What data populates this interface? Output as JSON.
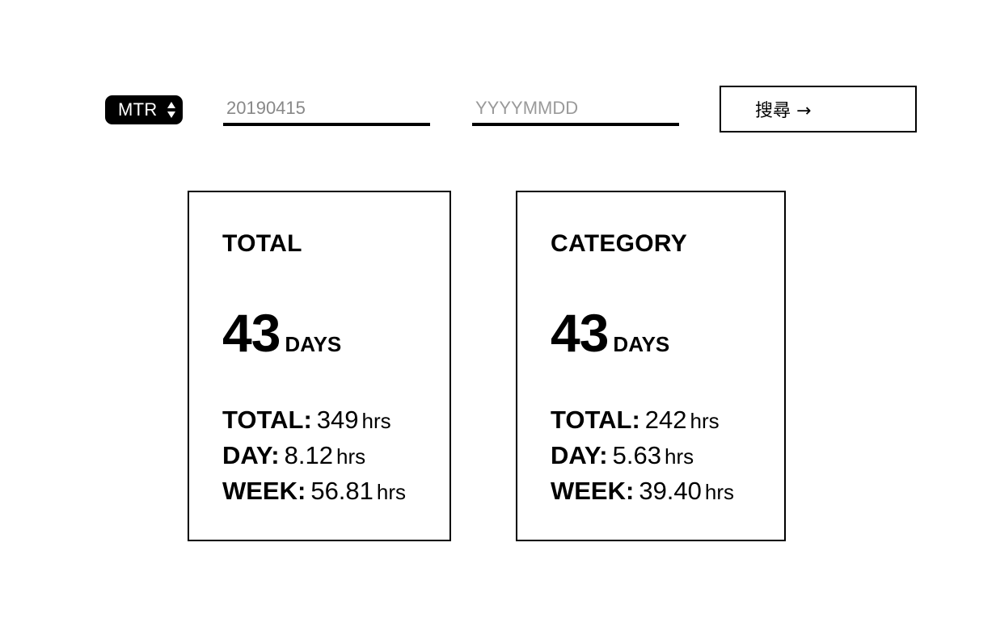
{
  "toolbar": {
    "category_select": {
      "selected": "MTR"
    },
    "start_date": {
      "value": "20190415",
      "placeholder": "YYYYMMDD"
    },
    "end_date": {
      "value": "",
      "placeholder": "YYYYMMDD"
    },
    "search_label": "搜尋 →"
  },
  "cards": [
    {
      "title": "TOTAL",
      "days": "43",
      "days_unit": "DAYS",
      "stats": {
        "total_label": "TOTAL:",
        "total_value": "349",
        "total_unit": "hrs",
        "day_label": "DAY:",
        "day_value": "8.12",
        "day_unit": "hrs",
        "week_label": "WEEK:",
        "week_value": "56.81",
        "week_unit": "hrs"
      }
    },
    {
      "title": "CATEGORY",
      "days": "43",
      "days_unit": "DAYS",
      "stats": {
        "total_label": "TOTAL:",
        "total_value": "242",
        "total_unit": "hrs",
        "day_label": "DAY:",
        "day_value": "5.63",
        "day_unit": "hrs",
        "week_label": "WEEK:",
        "week_value": "39.40",
        "week_unit": "hrs"
      }
    }
  ],
  "colors": {
    "text": "#000000",
    "placeholder": "#9a9a9a",
    "background": "#ffffff"
  }
}
